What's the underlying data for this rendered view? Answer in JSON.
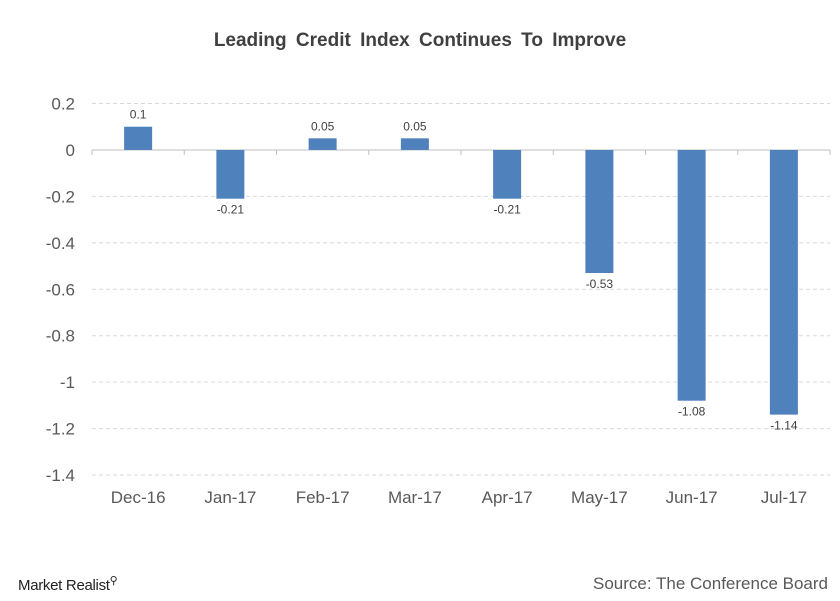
{
  "chart_data": {
    "type": "bar",
    "title": "Leading Credit Index Continues To Improve",
    "categories": [
      "Dec-16",
      "Jan-17",
      "Feb-17",
      "Mar-17",
      "Apr-17",
      "May-17",
      "Jun-17",
      "Jul-17"
    ],
    "values": [
      0.1,
      -0.21,
      0.05,
      0.05,
      -0.21,
      -0.53,
      -1.08,
      -1.14
    ],
    "data_labels": [
      "0.1",
      "-0.21",
      "0.05",
      "0.05",
      "-0.21",
      "-0.53",
      "-1.08",
      "-1.14"
    ],
    "xlabel": "",
    "ylabel": "",
    "ylim": [
      -1.4,
      0.2
    ],
    "yticks": [
      "0.2",
      "0",
      "-0.2",
      "-0.4",
      "-0.6",
      "-0.8",
      "-1",
      "-1.2",
      "-1.4"
    ],
    "ytick_values": [
      0.2,
      0,
      -0.2,
      -0.4,
      -0.6,
      -0.8,
      -1,
      -1.2,
      -1.4
    ],
    "grid": true,
    "bar_color": "#4f81bd"
  },
  "footer": {
    "logo": "Market Realist",
    "source": "Source: The Conference Board"
  }
}
